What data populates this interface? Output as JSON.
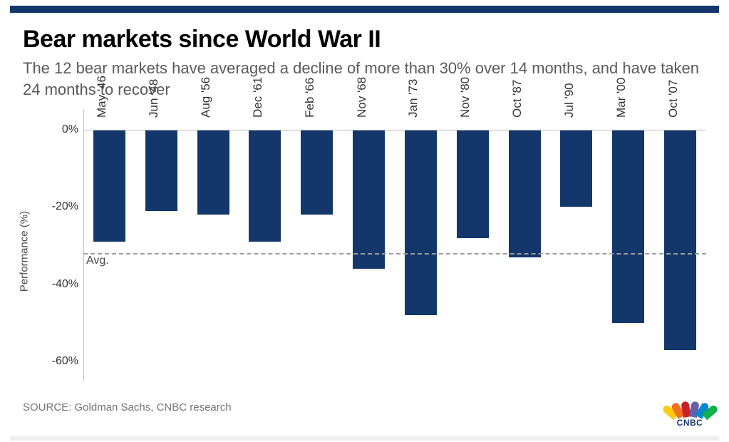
{
  "top_bar_color": "#14376b",
  "title": "Bear markets since World War II",
  "subtitle": "The 12 bear markets have averaged a decline of more than 30% over 14 months, and have taken 24 months to recover",
  "source": "SOURCE: Goldman Sachs, CNBC research",
  "logo_text": "CNBC",
  "logo_color": "#14376b",
  "peacock_colors": [
    "#fccb12",
    "#f37021",
    "#ca2128",
    "#6460aa",
    "#0089d0",
    "#0db14b"
  ],
  "chart": {
    "type": "bar",
    "y_title": "Performance (%)",
    "y_ticks": [
      0,
      -20,
      -40,
      -60
    ],
    "y_tick_labels": [
      "0%",
      "-20%",
      "-40%",
      "-60%"
    ],
    "ylim": [
      -65,
      5
    ],
    "avg_value": -32,
    "avg_label": "Avg.",
    "bar_color": "#14376b",
    "background_color": "#ffffff",
    "axis_color": "#bdbdbd",
    "avg_line_color": "#9e9e9e",
    "label_fontsize": 17,
    "tick_fontsize": 16,
    "categories": [
      "May '46",
      "Jun '48",
      "Aug '56",
      "Dec '61",
      "Feb '66",
      "Nov '68",
      "Jan '73",
      "Nov '80",
      "Oct '87",
      "Jul '90",
      "Mar '00",
      "Oct '07"
    ],
    "values": [
      -29,
      -21,
      -22,
      -29,
      -22,
      -36,
      -48,
      -28,
      -33,
      -20,
      -50,
      -57
    ],
    "bar_width_ratio": 0.62,
    "label_top_value": 3
  }
}
